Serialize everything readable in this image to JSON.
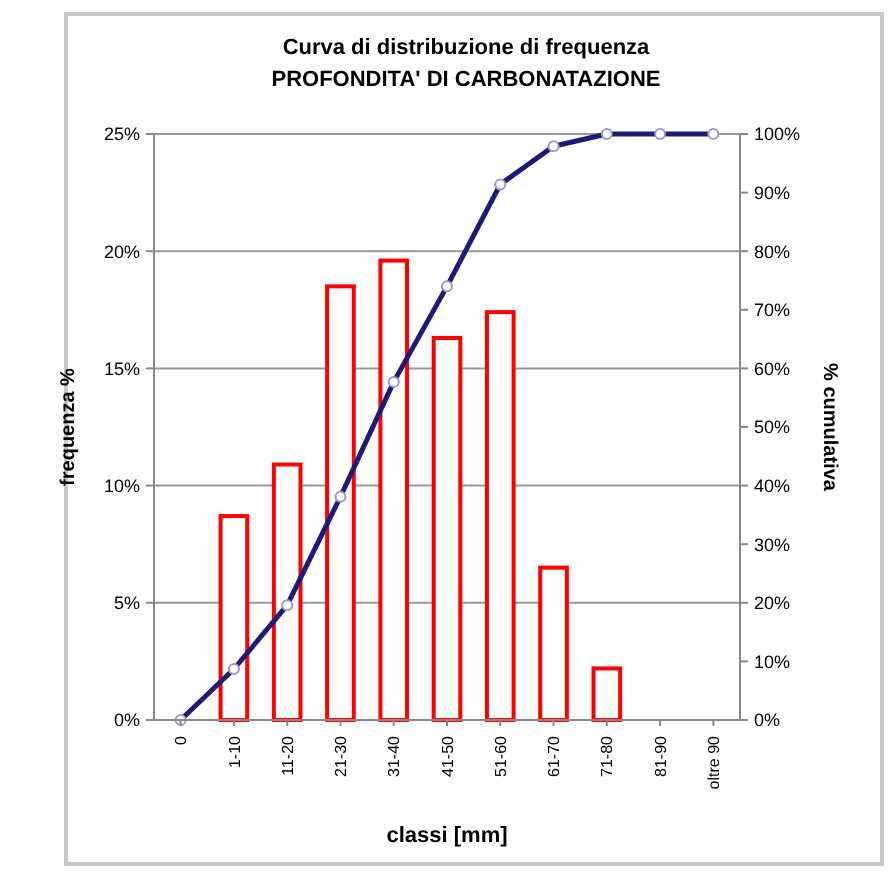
{
  "chart_data": {
    "type": "bar",
    "title": "Curva di distribuzione di frequenza",
    "subtitle": "PROFONDITA' DI CARBONATAZIONE",
    "xlabel": "classi [mm]",
    "ylabel": "frequenza %",
    "y2label": "% cumulativa",
    "categories": [
      "0",
      "1-10",
      "11-20",
      "21-30",
      "31-40",
      "41-50",
      "51-60",
      "61-70",
      "71-80",
      "81-90",
      "oltre 90"
    ],
    "series": [
      {
        "color": "#ff0000",
        "values": [
          0,
          8.7,
          10.9,
          18.5,
          19.6,
          16.3,
          17.4,
          6.5,
          2.2,
          0,
          0
        ]
      },
      {
        "type": "line",
        "axis": "y2",
        "color": "#1c1c78",
        "values": [
          0,
          8.7,
          19.6,
          38.1,
          57.7,
          74.0,
          91.4,
          97.9,
          100,
          100,
          100
        ]
      }
    ],
    "ylim": [
      0,
      25
    ],
    "yticks": [
      {
        "value": 0,
        "label": "0%"
      },
      {
        "value": 5,
        "label": "5%"
      },
      {
        "value": 10,
        "label": "10%"
      },
      {
        "value": 15,
        "label": "15%"
      },
      {
        "value": 20,
        "label": "20%"
      },
      {
        "value": 25,
        "label": "25%"
      }
    ],
    "y2lim": [
      0,
      100
    ],
    "y2ticks": [
      {
        "value": 0,
        "label": "0%"
      },
      {
        "value": 10,
        "label": "10%"
      },
      {
        "value": 20,
        "label": "20%"
      },
      {
        "value": 30,
        "label": "30%"
      },
      {
        "value": 40,
        "label": "40%"
      },
      {
        "value": 50,
        "label": "50%"
      },
      {
        "value": 60,
        "label": "60%"
      },
      {
        "value": 70,
        "label": "70%"
      },
      {
        "value": 80,
        "label": "80%"
      },
      {
        "value": 90,
        "label": "90%"
      },
      {
        "value": 100,
        "label": "100%"
      }
    ],
    "grid": "y",
    "marker": "circle",
    "line_style": "solid"
  }
}
